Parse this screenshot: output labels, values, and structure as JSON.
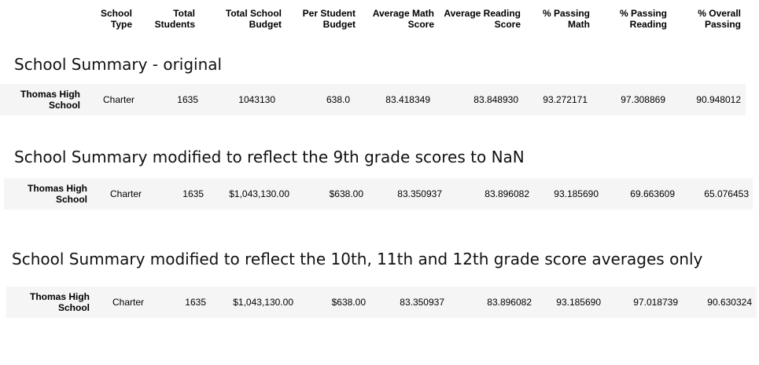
{
  "columns": [
    "School\nType",
    "Total\nStudents",
    "Total School\nBudget",
    "Per Student\nBudget",
    "Average Math\nScore",
    "Average Reading\nScore",
    "% Passing\nMath",
    "% Passing\nReading",
    "% Overall\nPassing"
  ],
  "sections": [
    {
      "title": "School Summary - original",
      "school": "Thomas High\nSchool",
      "values": [
        "Charter",
        "1635",
        "1043130",
        "638.0",
        "83.418349",
        "83.848930",
        "93.272171",
        "97.308869",
        "90.948012"
      ]
    },
    {
      "title": "School Summary modified to reflect the 9th grade scores to NaN",
      "school": "Thomas High\nSchool",
      "values": [
        "Charter",
        "1635",
        "$1,043,130.00",
        "$638.00",
        "83.350937",
        "83.896082",
        "93.185690",
        "69.663609",
        "65.076453"
      ]
    },
    {
      "title": "School Summary modified to reflect the 10th, 11th and 12th grade score averages only",
      "school": "Thomas High\nSchool",
      "values": [
        "Charter",
        "1635",
        "$1,043,130.00",
        "$638.00",
        "83.350937",
        "83.896082",
        "93.185690",
        "97.018739",
        "90.630324"
      ]
    }
  ]
}
